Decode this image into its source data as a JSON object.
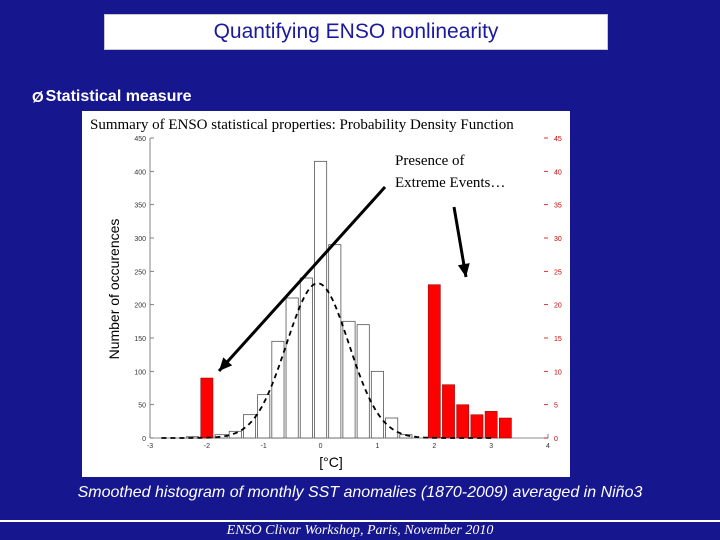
{
  "slide": {
    "title": "Quantifying ENSO nonlinearity",
    "bullet": "Statistical measure",
    "bullet_icon": "arrow-bullet-icon",
    "figure_title": "Summary of ENSO statistical properties: Probability Density Function",
    "caption": "Smoothed histogram of monthly SST anomalies (1870-2009) averaged in Niño3",
    "footer": "ENSO Clivar Workshop, Paris, November 2010",
    "annotation": "Presence of Extreme Events…",
    "colors": {
      "background": "#16168f",
      "title_text": "#1a1aa0",
      "bars_outline": "#000000",
      "bars_extreme": "#ff0000",
      "right_axis": "#cc0000"
    }
  },
  "chart_data": {
    "type": "bar",
    "xlabel": "[°C]",
    "ylabel": "Number of occurences",
    "xlim": [
      -3,
      4
    ],
    "x_ticks": [
      "-3",
      "-2",
      "-1",
      "0",
      "1",
      "2",
      "3",
      "4"
    ],
    "ylim_left": [
      0,
      450
    ],
    "ylim_right": [
      0,
      45
    ],
    "y_ticks_left": [
      "0",
      "50",
      "100",
      "150",
      "200",
      "250",
      "300",
      "350",
      "400",
      "450"
    ],
    "y_ticks_right": [
      "0",
      "5",
      "10",
      "15",
      "20",
      "25",
      "30",
      "35",
      "40",
      "45"
    ],
    "series": [
      {
        "axis": "left",
        "style": "outlined",
        "x": [
          -2.25,
          -2.0,
          -1.75,
          -1.5,
          -1.25,
          -1.0,
          -0.75,
          -0.5,
          -0.25,
          0.0,
          0.25,
          0.5,
          0.75,
          1.0,
          1.25,
          1.5
        ],
        "values": [
          2,
          3,
          5,
          10,
          35,
          65,
          145,
          210,
          240,
          415,
          290,
          175,
          170,
          100,
          30,
          5
        ]
      },
      {
        "axis": "right",
        "style": "filled",
        "x": [
          -2.0,
          1.75,
          2.0,
          2.25,
          2.5,
          2.75,
          3.0,
          3.25
        ],
        "values": [
          9,
          0,
          23,
          8,
          5,
          3.5,
          4,
          3
        ]
      }
    ],
    "fit_curve": {
      "style": "dashed",
      "axis": "left",
      "mean": -0.05,
      "sd": 0.55,
      "peak": 232
    }
  }
}
